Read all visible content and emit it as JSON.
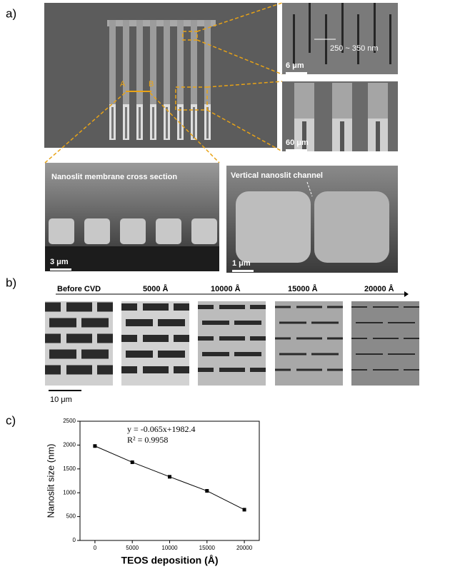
{
  "figure": {
    "panel_labels": [
      "a)",
      "b)",
      "c)"
    ],
    "panel_a": {
      "markers": [
        "A",
        "B"
      ],
      "gap_label": "250 ~ 350 nm",
      "scale_bars": [
        "6 μm",
        "60 μm",
        "3 μm",
        "1 μm"
      ],
      "captions": [
        "Nanoslit membrane cross section",
        "Vertical nanoslit channel"
      ]
    },
    "panel_b": {
      "stages": [
        "Before CVD",
        "5000 Å",
        "10000 Å",
        "15000 Å",
        "20000 Å"
      ],
      "scale_bar": "10 μm"
    }
  },
  "chart_data": {
    "type": "line",
    "annotations": [
      "y = -0.065x+1982.4",
      "R² = 0.9958"
    ],
    "x_label": "TEOS deposition (Å)",
    "y_label": "Nanoslit size (nm)",
    "x": [
      0,
      5000,
      10000,
      15000,
      20000
    ],
    "series": [
      {
        "color": "#000000",
        "values": [
          1980,
          1640,
          1335,
          1040,
          645
        ]
      }
    ],
    "xlim": [
      -2000,
      22000
    ],
    "xticks": [
      0,
      5000,
      10000,
      15000,
      20000
    ],
    "ylim": [
      0,
      2500
    ],
    "yticks": [
      0,
      500,
      1000,
      1500,
      2000,
      2500
    ]
  }
}
